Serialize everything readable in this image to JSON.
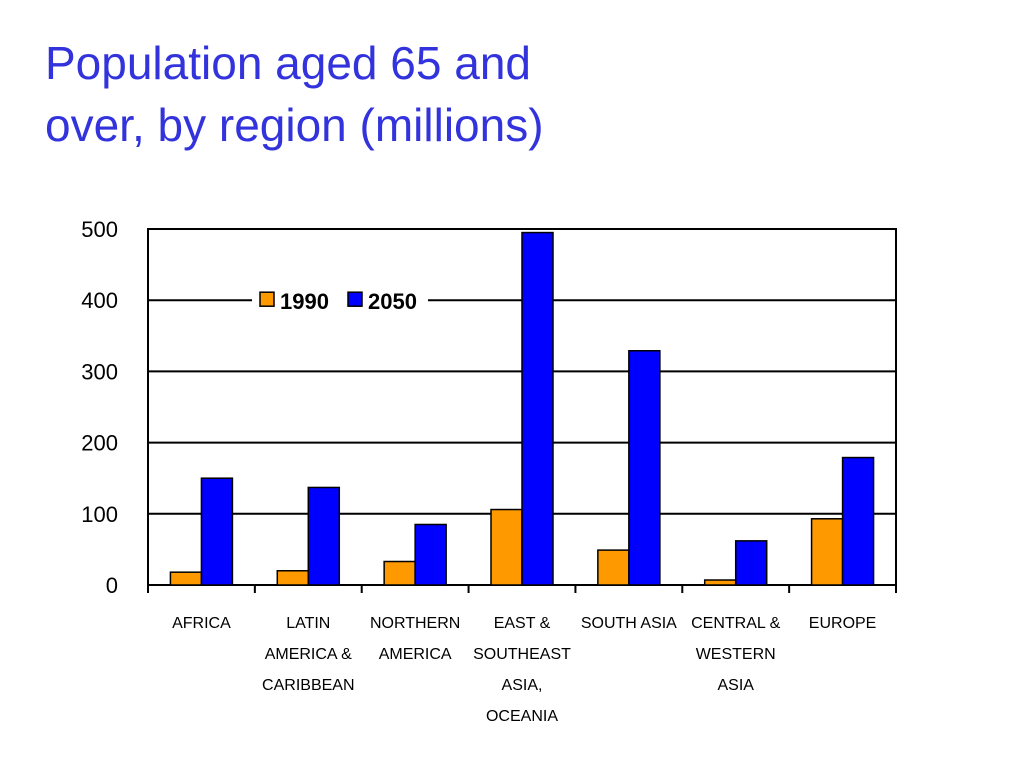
{
  "title_lines": [
    "Population aged 65 and",
    "over, by region (millions)"
  ],
  "chart_data": {
    "type": "bar",
    "title": "Population aged 65 and over, by region (millions)",
    "xlabel": "",
    "ylabel": "",
    "ylim": [
      0,
      500
    ],
    "yticks": [
      0,
      100,
      200,
      300,
      400,
      500
    ],
    "grid": true,
    "legend_position": "top-left",
    "categories": [
      [
        "AFRICA"
      ],
      [
        "LATIN",
        "AMERICA &",
        "CARIBBEAN"
      ],
      [
        "NORTHERN",
        "AMERICA"
      ],
      [
        "EAST &",
        "SOUTHEAST",
        "ASIA,",
        "OCEANIA"
      ],
      [
        "SOUTH ASIA"
      ],
      [
        "CENTRAL &",
        "WESTERN",
        "ASIA"
      ],
      [
        "EUROPE"
      ]
    ],
    "series": [
      {
        "name": "1990",
        "color": "#ff9900",
        "values": [
          18,
          20,
          33,
          106,
          49,
          7,
          93
        ]
      },
      {
        "name": "2050",
        "color": "#0000ff",
        "values": [
          150,
          137,
          85,
          495,
          329,
          62,
          179
        ]
      }
    ]
  }
}
